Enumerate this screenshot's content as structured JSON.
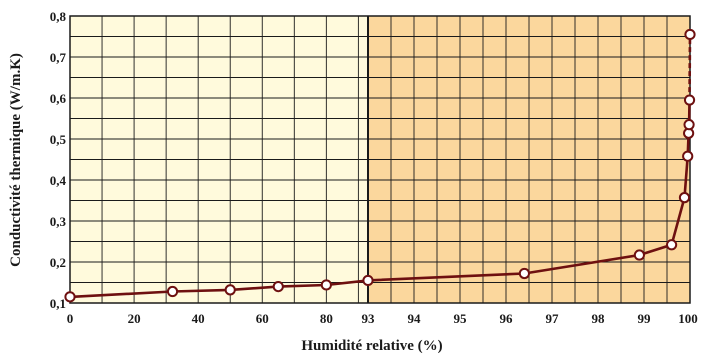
{
  "chart_data": {
    "type": "line",
    "title": "",
    "xlabel": "Humidité relative (%)",
    "ylabel": "Conductivité thermique (W/m.K)",
    "ylim": [
      0.1,
      0.8
    ],
    "y_ticks": [
      "0,1",
      "0,2",
      "0,3",
      "0,4",
      "0,5",
      "0,6",
      "0,7",
      "0,8"
    ],
    "x_scale": "piecewise linear: 0–93 compressed, 93–100 expanded",
    "x_ticks": [
      "0",
      "20",
      "40",
      "60",
      "80",
      "93",
      "94",
      "95",
      "96",
      "97",
      "98",
      "99",
      "100"
    ],
    "grid": true,
    "colors": {
      "left_region": "#fffadc",
      "right_region": "#fbd79d",
      "line": "#6e1010",
      "marker_fill": "#ffffff",
      "grid": "#1a1a1a"
    },
    "series": [
      {
        "x": [
          0,
          32,
          50,
          65,
          80,
          93,
          96.4,
          98.9,
          99.6,
          99.88,
          99.95,
          99.97,
          99.98,
          99.99,
          100
        ],
        "y": [
          0.115,
          0.128,
          0.132,
          0.14,
          0.144,
          0.155,
          0.172,
          0.217,
          0.242,
          0.357,
          0.458,
          0.514,
          0.535,
          0.595,
          0.755
        ]
      }
    ]
  }
}
